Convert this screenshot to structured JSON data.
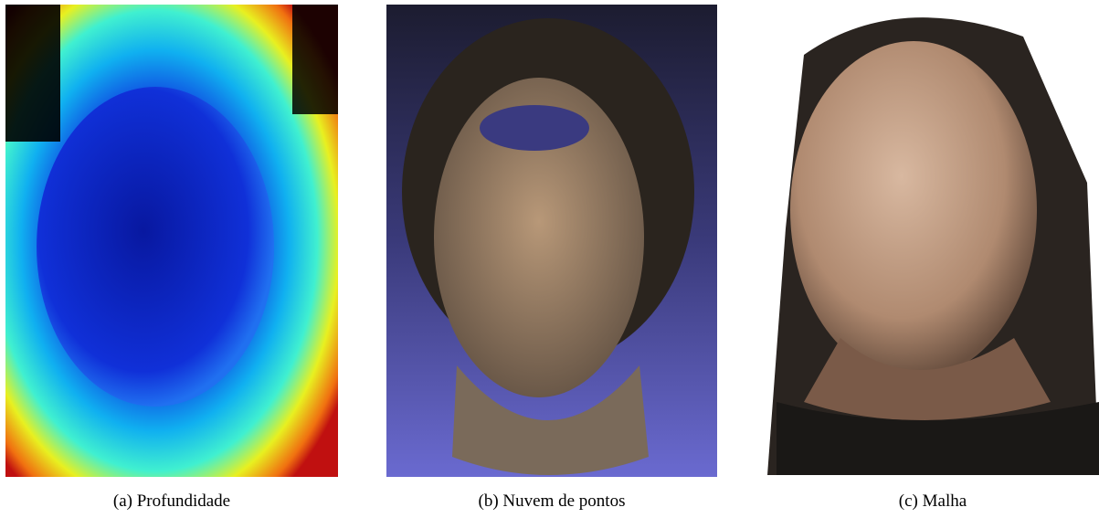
{
  "figure": {
    "panels": [
      {
        "caption": "(a) Profundidade"
      },
      {
        "caption": "(b) Nuvem de pontos"
      },
      {
        "caption": "(c) Malha"
      }
    ]
  }
}
